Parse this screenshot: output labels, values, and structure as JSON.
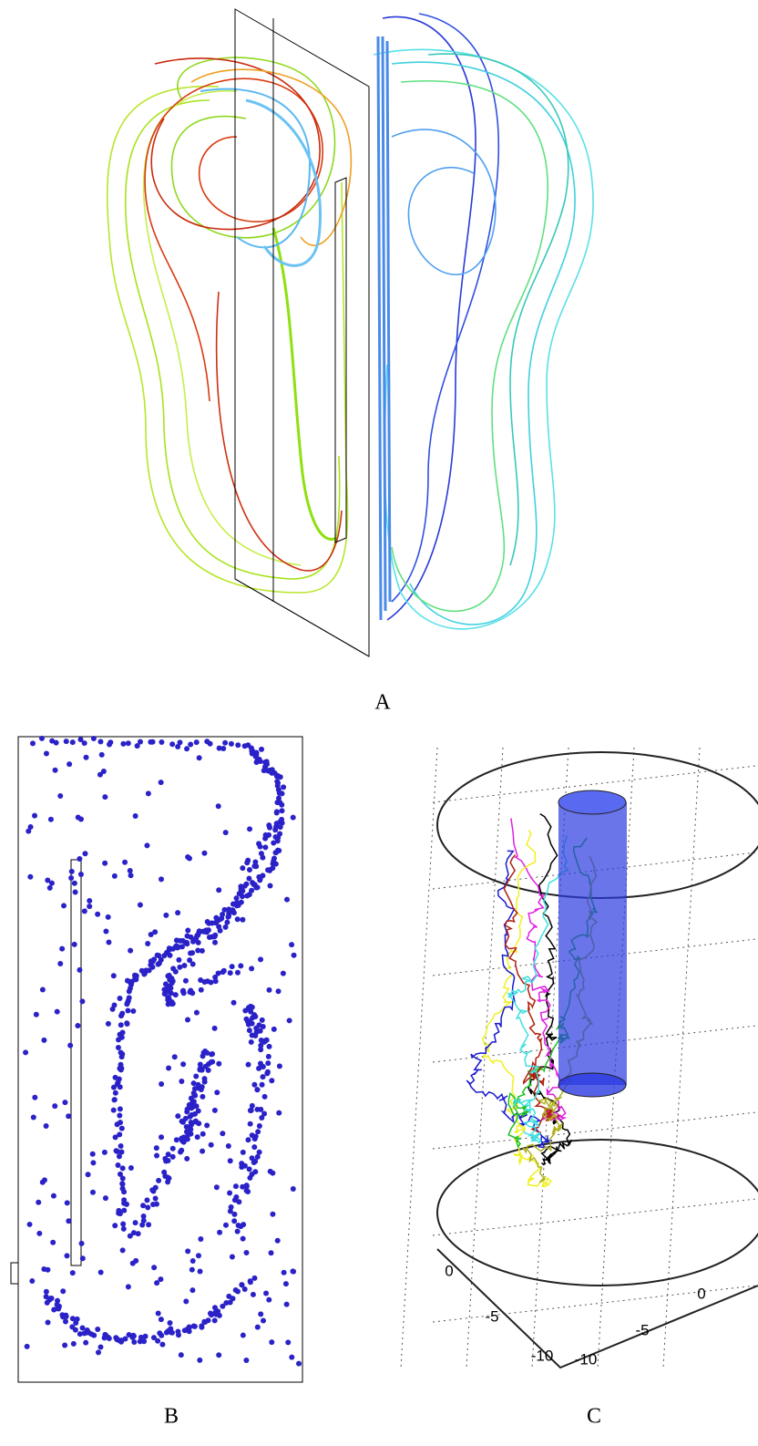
{
  "panels": [
    {
      "label": "A"
    },
    {
      "label": "B"
    },
    {
      "label": "C",
      "axis_labels": [
        "0",
        "-5",
        "-10",
        "-10",
        "-5",
        "0"
      ]
    }
  ]
}
